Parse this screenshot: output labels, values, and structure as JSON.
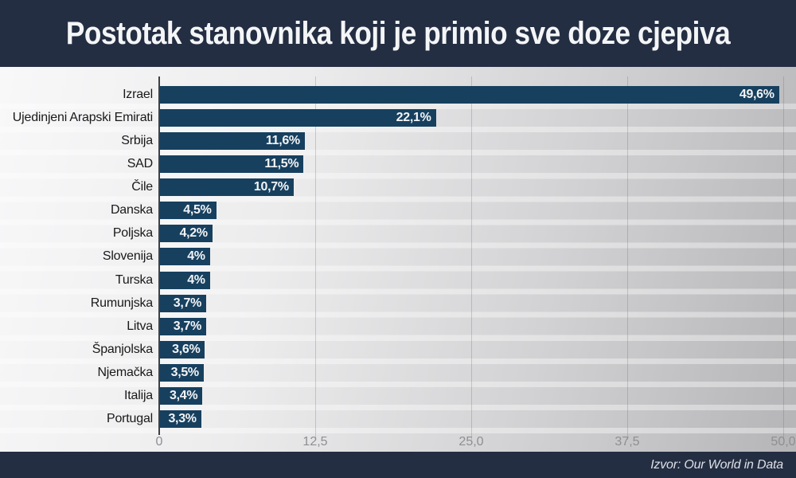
{
  "title": "Postotak stanovnika koji je primio sve doze cjepiva",
  "source": "Izvor: Our World in Data",
  "colors": {
    "header_bg": "#242e42",
    "footer_bg": "#242e42",
    "bar": "#17405f",
    "title_text": "#f4f5f7",
    "value_text": "#f3f4f6",
    "tick_text": "#8f8f92"
  },
  "chart_data": {
    "type": "bar",
    "orientation": "horizontal",
    "title": "Postotak stanovnika koji je primio sve doze cjepiva",
    "categories": [
      "Izrael",
      "Ujedinjeni Arapski Emirati",
      "Srbija",
      "SAD",
      "Čile",
      "Danska",
      "Poljska",
      "Slovenija",
      "Turska",
      "Rumunjska",
      "Litva",
      "Španjolska",
      "Njemačka",
      "Italija",
      "Portugal"
    ],
    "values": [
      49.6,
      22.1,
      11.6,
      11.5,
      10.7,
      4.5,
      4.2,
      4.0,
      4.0,
      3.7,
      3.7,
      3.6,
      3.5,
      3.4,
      3.3
    ],
    "value_labels": [
      "49,6%",
      "22,1%",
      "11,6%",
      "11,5%",
      "10,7%",
      "4,5%",
      "4,2%",
      "4%",
      "4%",
      "3,7%",
      "3,7%",
      "3,6%",
      "3,5%",
      "3,4%",
      "3,3%"
    ],
    "xlim": [
      0,
      50
    ],
    "x_ticks": [
      "0",
      "12,5",
      "25,0",
      "37,5",
      "50,0"
    ],
    "x_tick_values": [
      0,
      12.5,
      25.0,
      37.5,
      50.0
    ],
    "grid": true,
    "legend": false,
    "unit": "%"
  }
}
